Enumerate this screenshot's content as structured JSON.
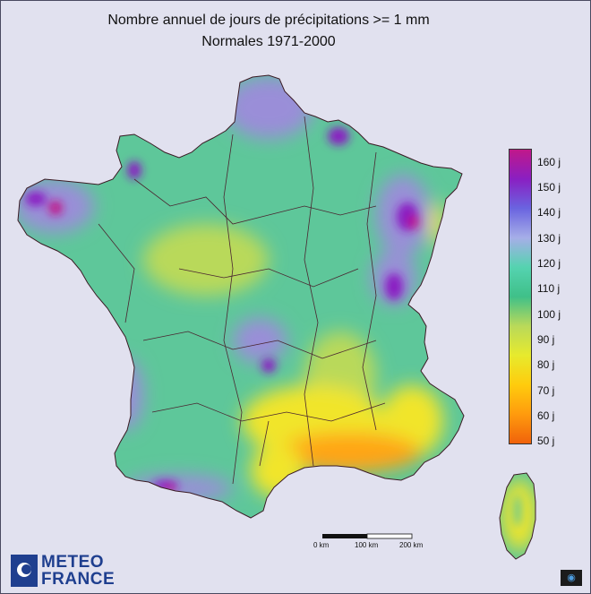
{
  "title": {
    "line1": "Nombre annuel de jours de précipitations >= 1 mm",
    "line2": "Normales 1971-2000"
  },
  "legend": {
    "labels": [
      "160 j",
      "150 j",
      "140 j",
      "130 j",
      "120 j",
      "110 j",
      "100 j",
      "90 j",
      "80 j",
      "70 j",
      "60 j",
      "50 j"
    ],
    "max_value": 160,
    "min_value": 50,
    "colors": [
      "#c0188a",
      "#8a1fc2",
      "#6a64e0",
      "#a6aee8",
      "#55d3b0",
      "#3fc089",
      "#b9d95a",
      "#e7ea2d",
      "#ffcc0d",
      "#ff9b0d",
      "#f0620c"
    ]
  },
  "scale_bar": {
    "labels": [
      "0 km",
      "100 km",
      "200 km"
    ]
  },
  "logo": {
    "line1": "METEO",
    "line2": "FRANCE"
  },
  "corner_icon": "monitor-icon",
  "map_colors": {
    "background": "#e1e1ef",
    "base": "#5ec79a",
    "wet": "#9a8ed8",
    "very_wet": "#8a1fc2",
    "extreme_wet": "#c0188a",
    "dry_green": "#b9d95a",
    "dry_yellow": "#f1e52a",
    "dry_orange": "#ffa514",
    "borders": "#4a2530"
  }
}
